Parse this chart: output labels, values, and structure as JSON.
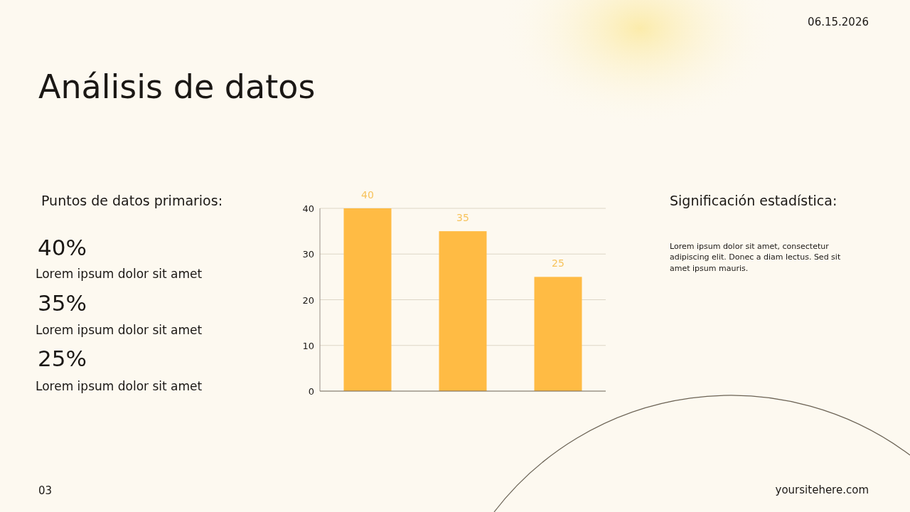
{
  "chart_data": {
    "type": "bar",
    "title": "Análisis de datos",
    "categories": [
      null,
      null,
      null
    ],
    "values": [
      40,
      35,
      25
    ],
    "color": "#ffbb44",
    "ylim": [
      0,
      40
    ],
    "yticks": [
      0,
      10,
      20,
      30,
      40
    ],
    "grid": "y",
    "data_labels": true,
    "annotations": [
      "06.15.2026",
      "Puntos de datos primarios:",
      "40%",
      "Lorem ipsum dolor sit amet",
      "35%",
      "Lorem ipsum dolor sit amet",
      "25%",
      "Lorem ipsum dolor sit amet",
      "Significación estadística:",
      "Lorem ipsum dolor sit amet, consectetur adipiscing elit. Donec a diam lectus. Sed sit amet ipsum mauris.",
      "03",
      "yoursitehere.com"
    ]
  }
}
